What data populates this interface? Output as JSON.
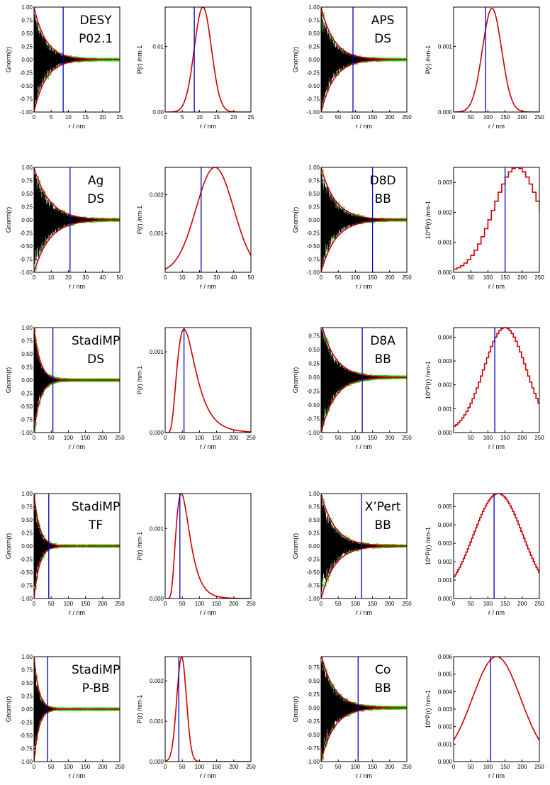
{
  "chart_data": [
    {
      "type": "line",
      "subtype": "pdf-gnorm",
      "xlabel": "r / nm",
      "ylabel": "Gnorm(r)",
      "xlim": [
        0,
        25
      ],
      "ylim": [
        -1,
        1
      ],
      "xticks": [
        0,
        5,
        10,
        15,
        20,
        25
      ],
      "yticks": [
        -1,
        -0.75,
        -0.5,
        -0.25,
        0,
        0.25,
        0.5,
        0.75,
        1
      ],
      "ytick_labels": [
        "-1.00",
        "-0.75",
        "-0.50",
        "-0.25",
        "0.00",
        "0.25",
        "0.50",
        "0.75",
        "1.00"
      ],
      "instrument": "DESY",
      "config": "P02.1",
      "marker_x": 8.5,
      "envelope_tau": 3.5,
      "noise_density": "low"
    },
    {
      "type": "line",
      "subtype": "size-distribution",
      "xlabel": "r / nm",
      "ylabel": "P(r) /nm-1",
      "xlim": [
        0,
        25
      ],
      "ylim": [
        0,
        0.016
      ],
      "xticks": [
        0,
        5,
        10,
        15,
        20,
        25
      ],
      "yticks": [
        0,
        0.01
      ],
      "ytick_labels": [
        "0.00",
        "0.01"
      ],
      "marker_x": 8.5,
      "dist": {
        "kind": "gaussian",
        "center": 11,
        "width": 2.5,
        "peak": 0.016
      }
    },
    {
      "type": "line",
      "subtype": "pdf-gnorm",
      "xlabel": "r / nm",
      "ylabel": "Gnorm(r)",
      "xlim": [
        0,
        250
      ],
      "ylim": [
        -1,
        1
      ],
      "xticks": [
        0,
        50,
        100,
        150,
        200,
        250
      ],
      "yticks": [
        -1,
        -0.75,
        -0.5,
        -0.25,
        0,
        0.25,
        0.5,
        0.75,
        1
      ],
      "ytick_labels": [
        "-1.00",
        "-0.75",
        "-0.50",
        "-0.25",
        "0.00",
        "0.25",
        "0.50",
        "0.75",
        "1.00"
      ],
      "instrument": "APS",
      "config": "DS",
      "marker_x": 93,
      "envelope_tau": 38,
      "noise_density": "low"
    },
    {
      "type": "line",
      "subtype": "size-distribution",
      "xlabel": "r / nm",
      "ylabel": "P(r) /nm-1",
      "xlim": [
        0,
        250
      ],
      "ylim": [
        0,
        0.0016
      ],
      "xticks": [
        0,
        50,
        100,
        150,
        200,
        250
      ],
      "yticks": [
        0,
        0.001
      ],
      "ytick_labels": [
        "0.000",
        "0.001"
      ],
      "marker_x": 93,
      "dist": {
        "kind": "gaussian",
        "center": 112,
        "width": 28,
        "peak": 0.00158
      }
    },
    {
      "type": "line",
      "subtype": "pdf-gnorm",
      "xlabel": "r / nm",
      "ylabel": "Gnorm(r)",
      "xlim": [
        0,
        50
      ],
      "ylim": [
        -1,
        1
      ],
      "xticks": [
        0,
        10,
        20,
        30,
        40,
        50
      ],
      "yticks": [
        -1,
        -0.75,
        -0.5,
        -0.25,
        0,
        0.25,
        0.5,
        0.75,
        1
      ],
      "ytick_labels": [
        "-1.00",
        "-0.75",
        "-0.50",
        "-0.25",
        "0.00",
        "0.25",
        "0.50",
        "0.75",
        "1.00"
      ],
      "instrument": "Ag",
      "config": "DS",
      "marker_x": 21,
      "envelope_tau": 9,
      "noise_density": "low"
    },
    {
      "type": "line",
      "subtype": "size-distribution",
      "xlabel": "r / nm",
      "ylabel": "P(r) /nm-1",
      "xlim": [
        0,
        50
      ],
      "ylim": [
        0,
        0.0027
      ],
      "xticks": [
        0,
        10,
        20,
        30,
        40,
        50
      ],
      "yticks": [
        0.001,
        0.002
      ],
      "ytick_labels": [
        "0.001",
        "0.002"
      ],
      "marker_x": 21,
      "dist": {
        "kind": "gaussian",
        "center": 29,
        "width": 11,
        "peak": 0.0027
      }
    },
    {
      "type": "line",
      "subtype": "pdf-gnorm",
      "xlabel": "r / nm",
      "ylabel": "Gnorm(r)",
      "xlim": [
        0,
        250
      ],
      "ylim": [
        -1,
        1
      ],
      "xticks": [
        0,
        50,
        100,
        150,
        200,
        250
      ],
      "yticks": [
        -1,
        -0.75,
        -0.5,
        -0.25,
        0,
        0.25,
        0.5,
        0.75,
        1
      ],
      "ytick_labels": [
        "-1.00",
        "-0.75",
        "-0.50",
        "-0.25",
        "0.00",
        "0.25",
        "0.50",
        "0.75",
        "1.00"
      ],
      "instrument": "D8D",
      "config": "BB",
      "marker_x": 150,
      "envelope_tau": 42,
      "noise_density": "low"
    },
    {
      "type": "line",
      "subtype": "size-distribution",
      "xlabel": "r / nm",
      "ylabel": "10*P(r) /nm-1",
      "xlim": [
        0,
        250
      ],
      "ylim": [
        0,
        0.0035
      ],
      "xticks": [
        0,
        50,
        100,
        150,
        200,
        250
      ],
      "yticks": [
        0,
        0.001,
        0.002,
        0.003
      ],
      "ytick_labels": [
        "0.000",
        "0.001",
        "0.002",
        "0.003"
      ],
      "marker_x": 150,
      "dist": {
        "kind": "gaussian",
        "center": 185,
        "width": 68,
        "peak": 0.0035
      },
      "step": 10
    },
    {
      "type": "line",
      "subtype": "pdf-gnorm",
      "xlabel": "r / nm",
      "ylabel": "Gnorm(r)",
      "xlim": [
        0,
        250
      ],
      "ylim": [
        -1,
        1
      ],
      "xticks": [
        0,
        50,
        100,
        150,
        200,
        250
      ],
      "yticks": [
        -1,
        -0.75,
        -0.5,
        -0.25,
        0,
        0.25,
        0.5,
        0.75,
        1
      ],
      "ytick_labels": [
        "-1.00",
        "-0.75",
        "-0.50",
        "-0.25",
        "0.00",
        "0.25",
        "0.50",
        "0.75",
        "1.00"
      ],
      "instrument": "StadiMP",
      "config": "DS",
      "marker_x": 55,
      "envelope_tau": 18,
      "noise_density": "high"
    },
    {
      "type": "line",
      "subtype": "size-distribution",
      "xlabel": "r / nm",
      "ylabel": "P(r) /nm-1",
      "xlim": [
        0,
        250
      ],
      "ylim": [
        0,
        0.0013
      ],
      "xticks": [
        0,
        50,
        100,
        150,
        200,
        250
      ],
      "yticks": [
        0,
        0.001
      ],
      "ytick_labels": [
        "0.000",
        "0.001"
      ],
      "marker_x": 55,
      "dist": {
        "kind": "lognormal",
        "center": 55,
        "sigma": 0.48,
        "peak": 0.00128
      }
    },
    {
      "type": "line",
      "subtype": "pdf-gnorm",
      "xlabel": "r / nm",
      "ylabel": "Gnorm(r)",
      "xlim": [
        0,
        250
      ],
      "ylim": [
        -1,
        0.9
      ],
      "xticks": [
        0,
        50,
        100,
        150,
        200,
        250
      ],
      "yticks": [
        -1,
        -0.75,
        -0.5,
        -0.25,
        0,
        0.25,
        0.5,
        0.75
      ],
      "ytick_labels": [
        "-1.00",
        "-0.75",
        "-0.50",
        "-0.25",
        "0.00",
        "0.25",
        "0.50",
        "0.75"
      ],
      "instrument": "D8A",
      "config": "BB",
      "marker_x": 120,
      "envelope_tau": 40,
      "noise_density": "high"
    },
    {
      "type": "line",
      "subtype": "size-distribution",
      "xlabel": "r / nm",
      "ylabel": "10*P(r) /nm-1",
      "xlim": [
        0,
        250
      ],
      "ylim": [
        0,
        0.0044
      ],
      "xticks": [
        50,
        100,
        150,
        200,
        250
      ],
      "yticks": [
        0,
        0.001,
        0.002,
        0.003,
        0.004
      ],
      "ytick_labels": [
        "0.000",
        "0.001",
        "0.002",
        "0.003",
        "0.004"
      ],
      "marker_x": 120,
      "dist": {
        "kind": "gaussian",
        "center": 150,
        "width": 62,
        "peak": 0.0044
      },
      "step": 6
    },
    {
      "type": "line",
      "subtype": "pdf-gnorm",
      "xlabel": "r / nm",
      "ylabel": "Gnorm(r)",
      "xlim": [
        0,
        250
      ],
      "ylim": [
        -1,
        1
      ],
      "xticks": [
        0,
        50,
        100,
        150,
        200,
        250
      ],
      "yticks": [
        -1,
        -0.75,
        -0.5,
        -0.25,
        0,
        0.25,
        0.5,
        0.75,
        1
      ],
      "ytick_labels": [
        "-1.00",
        "-0.75",
        "-0.50",
        "-0.25",
        "0.00",
        "0.25",
        "0.50",
        "0.75",
        "1.00"
      ],
      "instrument": "StadiMP",
      "config": "TF",
      "marker_x": 43,
      "envelope_tau": 16,
      "noise_density": "low"
    },
    {
      "type": "line",
      "subtype": "size-distribution",
      "xlabel": "r / nm",
      "ylabel": "P(r) /nm-1",
      "xlim": [
        0,
        250
      ],
      "ylim": [
        0,
        0.0015
      ],
      "xticks": [
        0,
        50,
        100,
        150,
        200,
        250
      ],
      "yticks": [
        0,
        0.001
      ],
      "ytick_labels": [
        "0.000",
        "0.001"
      ],
      "marker_x": 43,
      "dist": {
        "kind": "lognormal",
        "center": 47,
        "sigma": 0.42,
        "peak": 0.0015
      }
    },
    {
      "type": "line",
      "subtype": "pdf-gnorm",
      "xlabel": "r / nm",
      "ylabel": "Gnorm(r)",
      "xlim": [
        0,
        250
      ],
      "ylim": [
        -1,
        1
      ],
      "xticks": [
        0,
        50,
        100,
        150,
        200,
        250
      ],
      "yticks": [
        -1,
        -0.75,
        -0.5,
        -0.25,
        0,
        0.25,
        0.5,
        0.75,
        1
      ],
      "ytick_labels": [
        "-1.00",
        "-0.75",
        "-0.50",
        "-0.25",
        "0.00",
        "0.25",
        "0.50",
        "0.75",
        "1.00"
      ],
      "instrument": "X’Pert",
      "config": "BB",
      "marker_x": 118,
      "envelope_tau": 40,
      "noise_density": "low"
    },
    {
      "type": "line",
      "subtype": "size-distribution",
      "xlabel": "r / nm",
      "ylabel": "10*P(r) /nm-1",
      "xlim": [
        0,
        250
      ],
      "ylim": [
        0,
        0.0057
      ],
      "xticks": [
        0,
        50,
        100,
        150,
        200,
        250
      ],
      "yticks": [
        0,
        0.001,
        0.002,
        0.003,
        0.004,
        0.005
      ],
      "ytick_labels": [
        "0.000",
        "0.001",
        "0.002",
        "0.003",
        "0.004",
        "0.005"
      ],
      "marker_x": 118,
      "dist": {
        "kind": "gaussian",
        "center": 130,
        "width": 72,
        "peak": 0.0057
      },
      "step": 4
    },
    {
      "type": "line",
      "subtype": "pdf-gnorm",
      "xlabel": "r / nm",
      "ylabel": "Gnorm(r)",
      "xlim": [
        0,
        250
      ],
      "ylim": [
        -1,
        1
      ],
      "xticks": [
        0,
        50,
        100,
        150,
        200,
        250
      ],
      "yticks": [
        -1,
        -0.75,
        -0.5,
        -0.25,
        0,
        0.25,
        0.5,
        0.75,
        1
      ],
      "ytick_labels": [
        "-1.00",
        "-0.75",
        "-0.50",
        "-0.25",
        "0.00",
        "0.25",
        "0.50",
        "0.75",
        "1.00"
      ],
      "instrument": "StadiMP",
      "config": "P-BB",
      "marker_x": 40,
      "envelope_tau": 14,
      "noise_density": "low"
    },
    {
      "type": "line",
      "subtype": "size-distribution",
      "xlabel": "r / nm",
      "ylabel": "P(r) /nm-1",
      "xlim": [
        0,
        250
      ],
      "ylim": [
        0,
        0.0026
      ],
      "xticks": [
        0,
        50,
        100,
        150,
        200,
        250
      ],
      "yticks": [
        0,
        0.001,
        0.002
      ],
      "ytick_labels": [
        "0.000",
        "0.001",
        "0.002"
      ],
      "marker_x": 40,
      "dist": {
        "kind": "gaussian",
        "center": 48,
        "width": 14,
        "peak": 0.0026
      }
    },
    {
      "type": "line",
      "subtype": "pdf-gnorm",
      "xlabel": "r / nm",
      "ylabel": "Gnorm(r)",
      "xlim": [
        0,
        250
      ],
      "ylim": [
        -1,
        0.95
      ],
      "xticks": [
        0,
        50,
        100,
        150,
        200,
        250
      ],
      "yticks": [
        -1,
        -0.75,
        -0.5,
        -0.25,
        0,
        0.25,
        0.5,
        0.75
      ],
      "ytick_labels": [
        "-1.00",
        "-0.75",
        "-0.50",
        "-0.25",
        "0.00",
        "0.25",
        "0.50",
        "0.75"
      ],
      "instrument": "Co",
      "config": "BB",
      "marker_x": 108,
      "envelope_tau": 38,
      "noise_density": "high"
    },
    {
      "type": "line",
      "subtype": "size-distribution",
      "xlabel": "r / nm",
      "ylabel": "10*P(r) /nm-1",
      "xlim": [
        0,
        250
      ],
      "ylim": [
        0,
        0.006
      ],
      "xticks": [
        0,
        50,
        100,
        150,
        200,
        250
      ],
      "yticks": [
        0,
        0.001,
        0.002,
        0.003,
        0.004,
        0.005,
        0.006
      ],
      "ytick_labels": [
        "0.000",
        "0.001",
        "0.002",
        "0.003",
        "0.004",
        "0.005",
        "0.006"
      ],
      "marker_x": 108,
      "dist": {
        "kind": "gaussian",
        "center": 125,
        "width": 70,
        "peak": 0.006
      }
    }
  ],
  "colors": {
    "fit": "#cc0000",
    "marker": "#0000cc",
    "data": "#00dd00",
    "diff": "#000000"
  }
}
